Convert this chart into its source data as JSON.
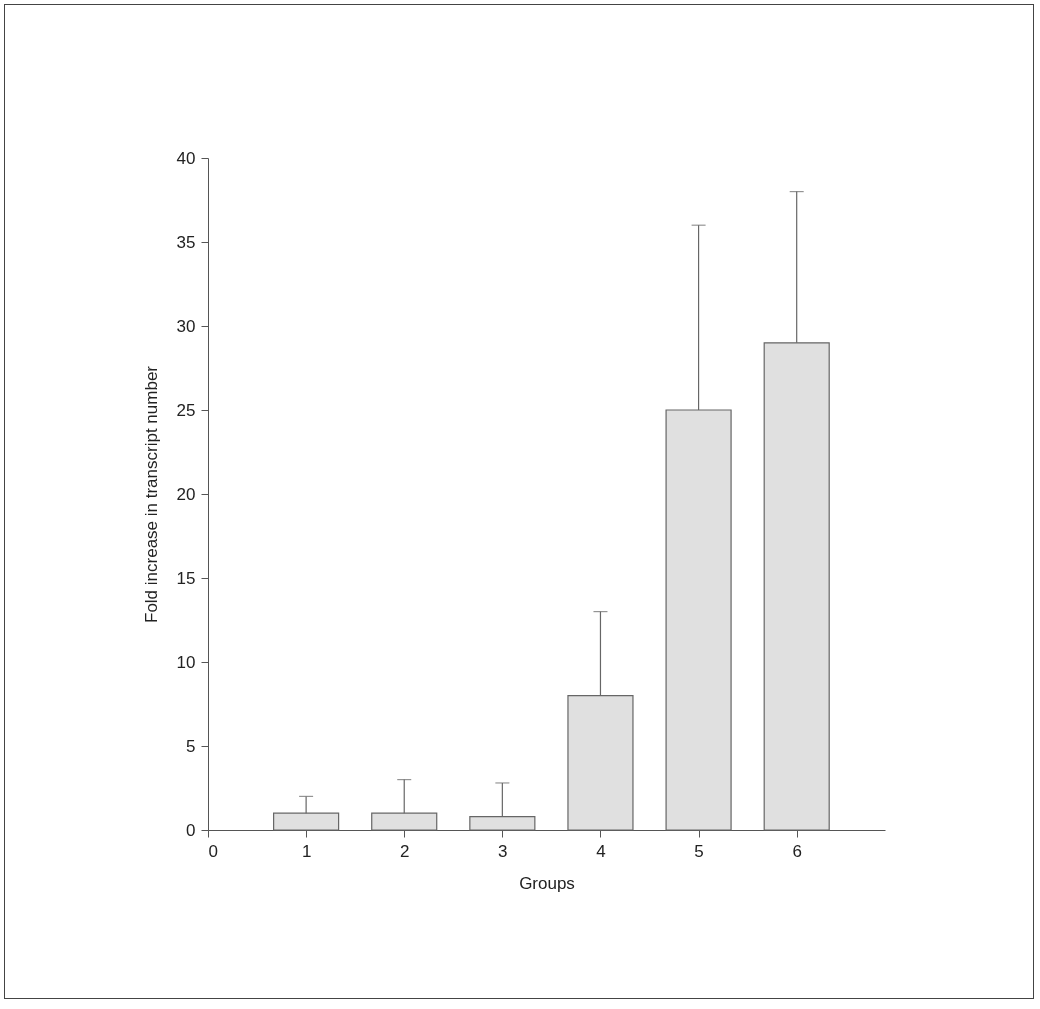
{
  "chart_data": {
    "type": "bar",
    "xlabel": "Groups",
    "ylabel": "Fold increase in transcript number",
    "x": [
      1,
      2,
      3,
      4,
      5,
      6
    ],
    "values": [
      1,
      1,
      0.8,
      8,
      25,
      29
    ],
    "errors": [
      [
        1,
        2
      ],
      [
        1,
        3
      ],
      [
        0.8,
        2.8
      ],
      [
        8,
        13
      ],
      [
        25,
        36
      ],
      [
        29,
        38
      ]
    ],
    "color": "#e0e0e0",
    "xlim": [
      0,
      6.9
    ],
    "xticks": [
      0,
      1,
      2,
      3,
      4,
      5,
      6
    ],
    "ylim": [
      0,
      40
    ],
    "yticks": [
      0,
      5,
      10,
      15,
      20,
      25,
      30,
      35,
      40
    ],
    "grid": false
  }
}
